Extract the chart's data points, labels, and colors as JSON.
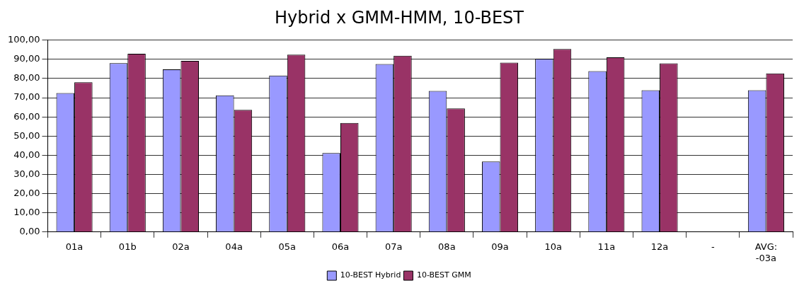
{
  "chart_data": {
    "type": "bar",
    "title": "Hybrid x GMM-HMM, 10-BEST",
    "categories": [
      "01a",
      "01b",
      "02a",
      "04a",
      "05a",
      "06a",
      "07a",
      "08a",
      "09a",
      "10a",
      "11a",
      "12a",
      "-",
      "AVG: -03a"
    ],
    "series": [
      {
        "name": "10-BEST Hybrid",
        "color": "#9999ff",
        "values": [
          72.4,
          88.0,
          84.8,
          71.2,
          81.6,
          41.2,
          87.6,
          73.5,
          36.7,
          90.3,
          83.9,
          73.9,
          null,
          73.9
        ]
      },
      {
        "name": "10-BEST GMM",
        "color": "#993366",
        "values": [
          78.1,
          92.9,
          89.2,
          63.7,
          92.5,
          56.8,
          91.9,
          64.4,
          88.3,
          95.4,
          91.1,
          87.9,
          null,
          82.7
        ]
      }
    ],
    "ylim": [
      0,
      100
    ],
    "yticks": [
      {
        "value": 0,
        "label": "0,00"
      },
      {
        "value": 10,
        "label": "10,00"
      },
      {
        "value": 20,
        "label": "20,00"
      },
      {
        "value": 30,
        "label": "30,00"
      },
      {
        "value": 40,
        "label": "40,00"
      },
      {
        "value": 50,
        "label": "50,00"
      },
      {
        "value": 60,
        "label": "60,00"
      },
      {
        "value": 70,
        "label": "70,00"
      },
      {
        "value": 80,
        "label": "80,00"
      },
      {
        "value": 90,
        "label": "90,00"
      },
      {
        "value": 100,
        "label": "100,00"
      }
    ],
    "grid": "y",
    "legend": "bottom"
  }
}
